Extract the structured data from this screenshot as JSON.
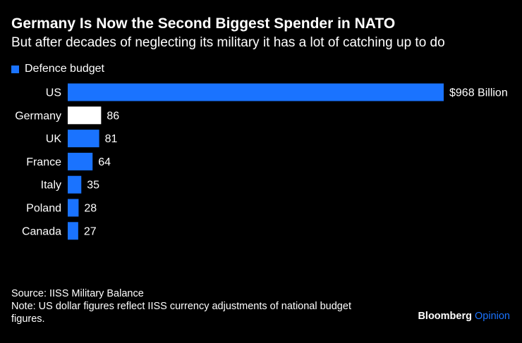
{
  "title": "Germany Is Now the Second Biggest Spender in NATO",
  "subtitle": "But after decades of neglecting its military it has a lot of catching up to do",
  "legend": {
    "label": "Defence budget",
    "color": "#1a73ff"
  },
  "chart_data": {
    "type": "bar",
    "orientation": "horizontal",
    "series": [
      {
        "name": "Defence budget",
        "values": [
          968,
          86,
          81,
          64,
          35,
          28,
          27
        ]
      }
    ],
    "categories": [
      "US",
      "Germany",
      "UK",
      "France",
      "Italy",
      "Poland",
      "Canada"
    ],
    "values": [
      968,
      86,
      81,
      64,
      35,
      28,
      27
    ],
    "data_labels": [
      "$968 Billion",
      "86",
      "81",
      "64",
      "35",
      "28",
      "27"
    ],
    "highlight": "Germany",
    "colors": {
      "default": "#1a73ff",
      "highlight": "#ffffff"
    },
    "xlim": [
      0,
      968
    ],
    "title": "Germany Is Now the Second Biggest Spender in NATO",
    "xlabel": "",
    "ylabel": ""
  },
  "footer": {
    "source": "Source: IISS Military Balance",
    "note": "Note: US dollar figures reflect IISS currency adjustments of national budget figures."
  },
  "brand": {
    "name": "Bloomberg",
    "suffix": "Opinion"
  }
}
